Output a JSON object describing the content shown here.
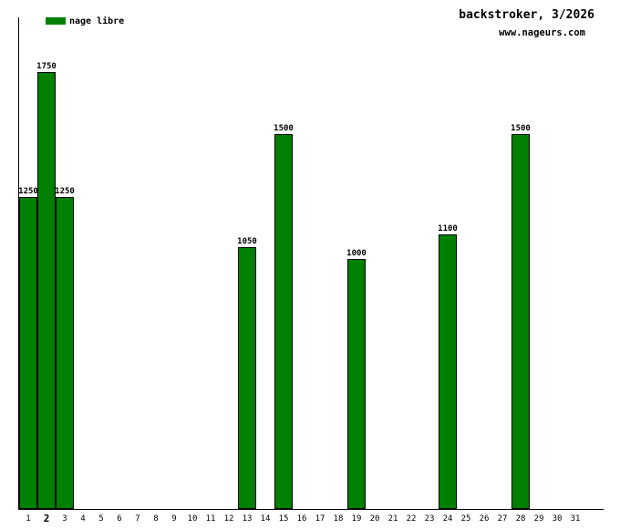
{
  "header": {
    "title": "backstroker, 3/2026",
    "website": "www.nageurs.com"
  },
  "legend": {
    "label": "nage libre",
    "color": "#008000"
  },
  "chart_data": {
    "type": "bar",
    "title": "backstroker, 3/2026",
    "series_label": "nage libre",
    "bar_color": "#008000",
    "axis_color": "#000000",
    "categories": [
      "1",
      "2",
      "3",
      "4",
      "5",
      "6",
      "7",
      "8",
      "9",
      "10",
      "11",
      "12",
      "13",
      "14",
      "15",
      "16",
      "17",
      "18",
      "19",
      "20",
      "21",
      "22",
      "23",
      "24",
      "25",
      "26",
      "27",
      "28",
      "29",
      "30",
      "31"
    ],
    "highlighted_category": "2",
    "bars": [
      {
        "day": 1,
        "value": 1250
      },
      {
        "day": 2,
        "value": 1750
      },
      {
        "day": 3,
        "value": 1250
      },
      {
        "day": 13,
        "value": 1050
      },
      {
        "day": 15,
        "value": 1500
      },
      {
        "day": 19,
        "value": 1000
      },
      {
        "day": 24,
        "value": 1100
      },
      {
        "day": 28,
        "value": 1500
      }
    ],
    "xlabel": "",
    "ylabel": "",
    "ylim": [
      0,
      1970
    ],
    "grid": false,
    "y_ticks_visible": false,
    "legend_position": "top-left",
    "data_labels_visible": true
  }
}
